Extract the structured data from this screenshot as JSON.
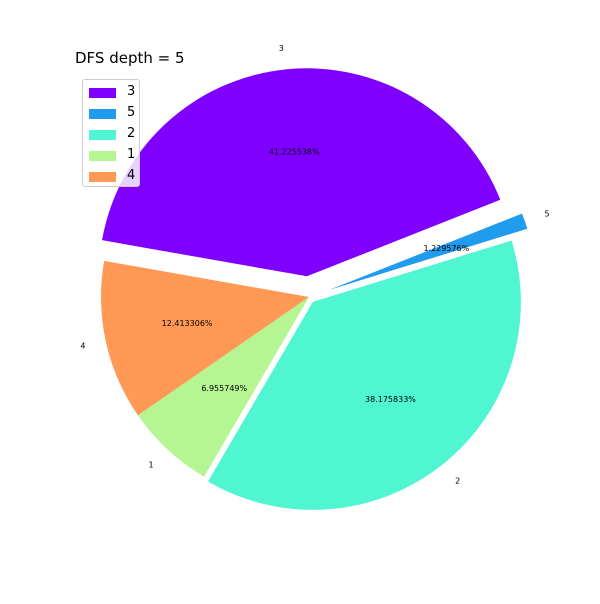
{
  "chart_data": {
    "type": "pie",
    "title": "DFS depth = 5",
    "slices": [
      {
        "label": "4",
        "value": 12.413306,
        "pct_label": "12.413306%",
        "color": "#ff9955",
        "explode": 0.0
      },
      {
        "label": "1",
        "value": 6.955749,
        "pct_label": "6.955749%",
        "color": "#b5f592",
        "explode": 0.0
      },
      {
        "label": "2",
        "value": 38.175833,
        "pct_label": "38.175833%",
        "color": "#50f6d2",
        "explode": 0.03
      },
      {
        "label": "5",
        "value": 1.229576,
        "pct_label": "1.229576%",
        "color": "#209cee",
        "explode": 0.1
      },
      {
        "label": "3",
        "value": 41.225538,
        "pct_label": "41.225538%",
        "color": "#8000ff",
        "explode": 0.1
      }
    ],
    "legend": {
      "placement": "top-left",
      "entries": [
        {
          "label": "3",
          "color": "#8000ff"
        },
        {
          "label": "5",
          "color": "#209cee"
        },
        {
          "label": "2",
          "color": "#50f6d2"
        },
        {
          "label": "1",
          "color": "#b5f592"
        },
        {
          "label": "4",
          "color": "#ff9955"
        }
      ]
    }
  }
}
